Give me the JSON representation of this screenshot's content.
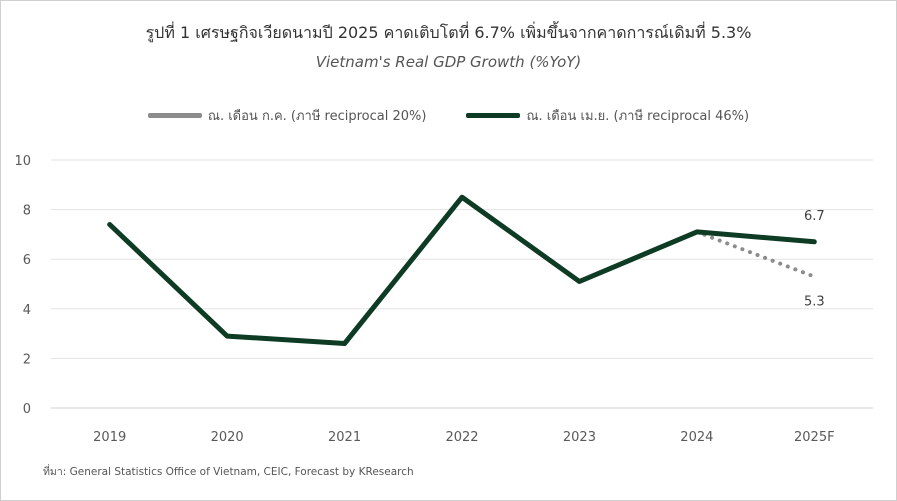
{
  "chart_data": {
    "type": "line",
    "title": "รูปที่ 1 เศรษฐกิจเวียดนามปี 2025 คาดเติบโตที่ 6.7% เพิ่มขึ้นจากคาดการณ์เดิมที่ 5.3%",
    "subtitle": "Vietnam's Real GDP Growth (%YoY)",
    "categories": [
      "2019",
      "2020",
      "2021",
      "2022",
      "2023",
      "2024",
      "2025F"
    ],
    "ylim": [
      0,
      10
    ],
    "yticks": [
      0,
      2,
      4,
      6,
      8,
      10
    ],
    "grid": true,
    "legend_position": "top-center",
    "series": [
      {
        "name": "ณ. เดือน ก.ค. (ภาษี reciprocal 20%)",
        "color": "#8c8c8c",
        "style": "dotted",
        "values": [
          null,
          null,
          null,
          null,
          null,
          7.1,
          5.3
        ]
      },
      {
        "name": "ณ. เดือน เม.ย. (ภาษี reciprocal 46%)",
        "color": "#0d3b24",
        "style": "solid",
        "values": [
          7.4,
          2.9,
          2.6,
          8.5,
          5.1,
          7.1,
          6.7
        ]
      }
    ],
    "data_labels": [
      {
        "category": "2025F",
        "value": 6.7,
        "text": "6.7",
        "position": "above"
      },
      {
        "category": "2025F",
        "value": 5.3,
        "text": "5.3",
        "position": "below"
      }
    ],
    "source": "ที่มา: General Statistics Office of Vietnam, CEIC, Forecast by KResearch"
  }
}
